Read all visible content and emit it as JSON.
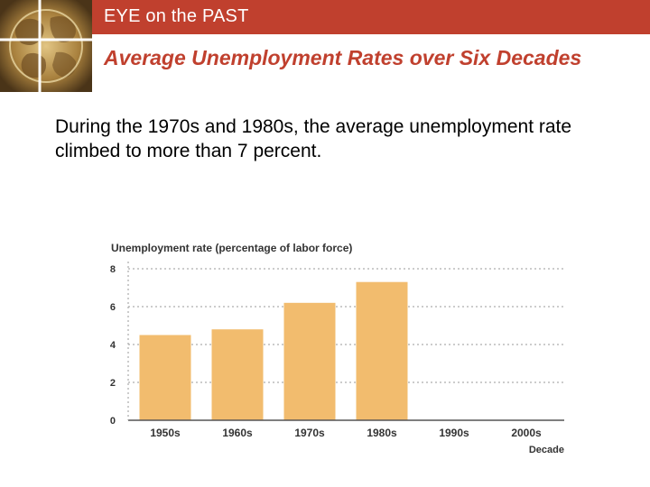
{
  "header": {
    "label": "EYE on the PAST"
  },
  "slide": {
    "title": "Average Unemployment Rates over Six Decades",
    "body": "During the 1970s and 1980s, the average unemployment rate climbed to more than 7 percent."
  },
  "colors": {
    "accent": "#c0402e",
    "bar": "#f2bc6e",
    "axis_text": "#333333",
    "grid": "#9a9a9a"
  },
  "icons": {
    "logo": "old-world-map-icon"
  },
  "chart_data": {
    "type": "bar",
    "title": "Unemployment rate (percentage of labor force)",
    "xlabel": "Decade",
    "ylabel": "Unemployment rate (percentage of labor force)",
    "categories": [
      "1950s",
      "1960s",
      "1970s",
      "1980s",
      "1990s",
      "2000s"
    ],
    "values": [
      4.5,
      4.8,
      6.2,
      7.3,
      null,
      null
    ],
    "ylim": [
      0,
      8
    ],
    "yticks": [
      0,
      2,
      4,
      6,
      8
    ],
    "grid": true
  }
}
